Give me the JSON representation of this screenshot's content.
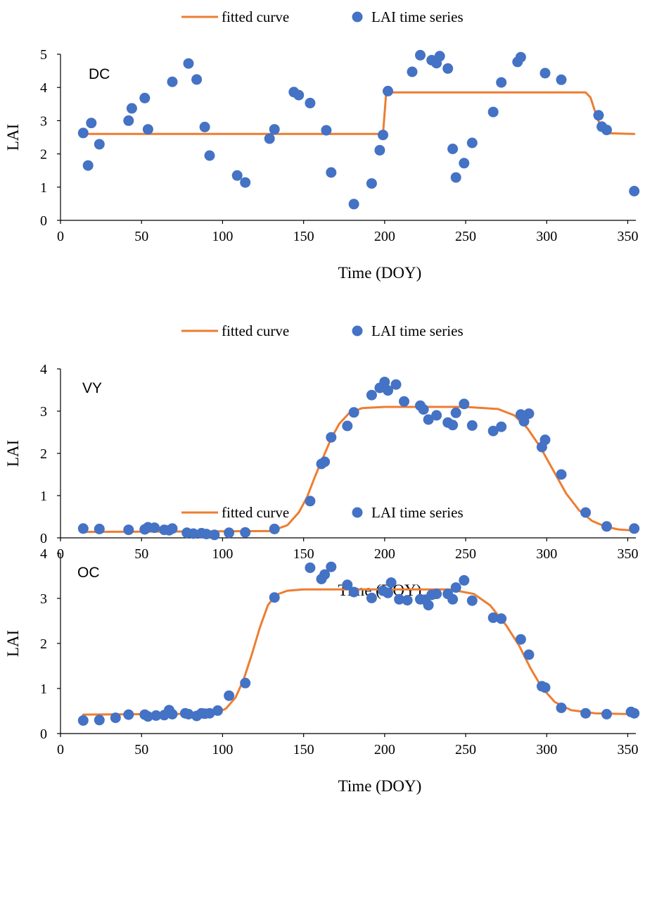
{
  "legend": {
    "line_label": "fitted curve",
    "dot_label": "LAI time series"
  },
  "colors": {
    "curve": "#ED7D31",
    "points": "#4472C4",
    "axis": "#000000"
  },
  "chart_data": [
    {
      "type": "scatter",
      "panel_label": "DC",
      "xlabel": "Time (DOY)",
      "ylabel": "LAI",
      "xlim": [
        0,
        355
      ],
      "ylim": [
        0,
        5
      ],
      "xticks": [
        0,
        50,
        100,
        150,
        200,
        250,
        300,
        350
      ],
      "yticks": [
        0,
        1,
        2,
        3,
        4,
        5
      ],
      "series": [
        {
          "name": "LAI time series",
          "kind": "points",
          "points": [
            [
              14,
              2.63
            ],
            [
              17,
              1.65
            ],
            [
              19,
              2.93
            ],
            [
              24,
              2.29
            ],
            [
              42,
              3.0
            ],
            [
              44,
              3.37
            ],
            [
              52,
              3.68
            ],
            [
              54,
              2.74
            ],
            [
              69,
              4.17
            ],
            [
              79,
              4.72
            ],
            [
              84,
              4.24
            ],
            [
              89,
              2.81
            ],
            [
              92,
              1.95
            ],
            [
              109,
              1.35
            ],
            [
              114,
              1.14
            ],
            [
              129,
              2.46
            ],
            [
              132,
              2.74
            ],
            [
              144,
              3.86
            ],
            [
              147,
              3.77
            ],
            [
              154,
              3.53
            ],
            [
              164,
              2.71
            ],
            [
              167,
              1.44
            ],
            [
              181,
              0.49
            ],
            [
              192,
              1.11
            ],
            [
              197,
              2.11
            ],
            [
              199,
              2.57
            ],
            [
              202,
              3.89
            ],
            [
              217,
              4.47
            ],
            [
              222,
              4.97
            ],
            [
              229,
              4.82
            ],
            [
              232,
              4.73
            ],
            [
              234,
              4.94
            ],
            [
              239,
              4.57
            ],
            [
              242,
              2.15
            ],
            [
              244,
              1.29
            ],
            [
              249,
              1.72
            ],
            [
              254,
              2.33
            ],
            [
              267,
              3.26
            ],
            [
              272,
              4.15
            ],
            [
              282,
              4.77
            ],
            [
              284,
              4.91
            ],
            [
              299,
              4.43
            ],
            [
              309,
              4.23
            ],
            [
              332,
              3.16
            ],
            [
              334,
              2.82
            ],
            [
              337,
              2.72
            ],
            [
              354,
              0.88
            ]
          ]
        },
        {
          "name": "fitted curve",
          "kind": "line",
          "points": [
            [
              14,
              2.6
            ],
            [
              199,
              2.6
            ],
            [
              201,
              3.85
            ],
            [
              324,
              3.85
            ],
            [
              327,
              3.7
            ],
            [
              331,
              3.1
            ],
            [
              334,
              2.75
            ],
            [
              338,
              2.62
            ],
            [
              354,
              2.6
            ]
          ]
        }
      ]
    },
    {
      "type": "scatter",
      "panel_label": "VY",
      "xlabel": "Time (DOY)",
      "ylabel": "LAI",
      "xlim": [
        0,
        355
      ],
      "ylim": [
        0,
        4
      ],
      "xticks": [
        0,
        50,
        100,
        150,
        200,
        250,
        300,
        350
      ],
      "yticks": [
        0,
        1,
        2,
        3,
        4
      ],
      "series": [
        {
          "name": "LAI time series",
          "kind": "points",
          "points": [
            [
              14,
              0.22
            ],
            [
              24,
              0.21
            ],
            [
              42,
              0.19
            ],
            [
              52,
              0.2
            ],
            [
              54,
              0.25
            ],
            [
              58,
              0.24
            ],
            [
              64,
              0.19
            ],
            [
              67,
              0.18
            ],
            [
              69,
              0.22
            ],
            [
              78,
              0.12
            ],
            [
              82,
              0.1
            ],
            [
              87,
              0.11
            ],
            [
              90,
              0.09
            ],
            [
              95,
              0.07
            ],
            [
              104,
              0.12
            ],
            [
              114,
              0.13
            ],
            [
              132,
              0.21
            ],
            [
              154,
              0.87
            ],
            [
              161,
              1.75
            ],
            [
              163,
              1.8
            ],
            [
              167,
              2.38
            ],
            [
              177,
              2.65
            ],
            [
              181,
              2.97
            ],
            [
              192,
              3.38
            ],
            [
              197,
              3.55
            ],
            [
              200,
              3.69
            ],
            [
              202,
              3.49
            ],
            [
              207,
              3.63
            ],
            [
              212,
              3.23
            ],
            [
              222,
              3.13
            ],
            [
              224,
              3.04
            ],
            [
              227,
              2.8
            ],
            [
              232,
              2.9
            ],
            [
              239,
              2.73
            ],
            [
              242,
              2.67
            ],
            [
              244,
              2.96
            ],
            [
              249,
              3.17
            ],
            [
              254,
              2.66
            ],
            [
              267,
              2.53
            ],
            [
              272,
              2.63
            ],
            [
              284,
              2.92
            ],
            [
              286,
              2.76
            ],
            [
              289,
              2.94
            ],
            [
              297,
              2.15
            ],
            [
              299,
              2.32
            ],
            [
              309,
              1.5
            ],
            [
              324,
              0.6
            ],
            [
              337,
              0.27
            ],
            [
              354,
              0.22
            ]
          ]
        },
        {
          "name": "fitted curve",
          "kind": "line",
          "points": [
            [
              14,
              0.14
            ],
            [
              130,
              0.16
            ],
            [
              140,
              0.3
            ],
            [
              147,
              0.6
            ],
            [
              152,
              0.95
            ],
            [
              157,
              1.45
            ],
            [
              162,
              1.9
            ],
            [
              167,
              2.35
            ],
            [
              172,
              2.7
            ],
            [
              178,
              2.95
            ],
            [
              186,
              3.07
            ],
            [
              200,
              3.1
            ],
            [
              250,
              3.1
            ],
            [
              270,
              3.05
            ],
            [
              280,
              2.9
            ],
            [
              288,
              2.6
            ],
            [
              296,
              2.15
            ],
            [
              304,
              1.6
            ],
            [
              312,
              1.05
            ],
            [
              320,
              0.65
            ],
            [
              328,
              0.4
            ],
            [
              336,
              0.27
            ],
            [
              344,
              0.2
            ],
            [
              354,
              0.17
            ]
          ]
        }
      ]
    },
    {
      "type": "scatter",
      "panel_label": "OC",
      "xlabel": "Time (DOY)",
      "ylabel": "LAI",
      "xlim": [
        0,
        355
      ],
      "ylim": [
        0,
        4
      ],
      "xticks": [
        0,
        50,
        100,
        150,
        200,
        250,
        300,
        350
      ],
      "yticks": [
        0,
        1,
        2,
        3,
        4
      ],
      "series": [
        {
          "name": "LAI time series",
          "kind": "points",
          "points": [
            [
              14,
              0.29
            ],
            [
              24,
              0.3
            ],
            [
              34,
              0.35
            ],
            [
              42,
              0.42
            ],
            [
              52,
              0.42
            ],
            [
              54,
              0.38
            ],
            [
              59,
              0.4
            ],
            [
              64,
              0.41
            ],
            [
              67,
              0.52
            ],
            [
              69,
              0.43
            ],
            [
              77,
              0.45
            ],
            [
              79,
              0.43
            ],
            [
              84,
              0.39
            ],
            [
              87,
              0.45
            ],
            [
              89,
              0.44
            ],
            [
              92,
              0.45
            ],
            [
              97,
              0.51
            ],
            [
              104,
              0.84
            ],
            [
              114,
              1.12
            ],
            [
              132,
              3.02
            ],
            [
              154,
              3.68
            ],
            [
              161,
              3.43
            ],
            [
              163,
              3.53
            ],
            [
              167,
              3.7
            ],
            [
              177,
              3.3
            ],
            [
              181,
              3.14
            ],
            [
              192,
              3.01
            ],
            [
              199,
              3.17
            ],
            [
              202,
              3.12
            ],
            [
              204,
              3.35
            ],
            [
              209,
              2.98
            ],
            [
              214,
              2.96
            ],
            [
              222,
              2.98
            ],
            [
              225,
              2.97
            ],
            [
              227,
              2.85
            ],
            [
              229,
              3.08
            ],
            [
              232,
              3.1
            ],
            [
              239,
              3.1
            ],
            [
              242,
              2.98
            ],
            [
              244,
              3.24
            ],
            [
              249,
              3.4
            ],
            [
              254,
              2.95
            ],
            [
              267,
              2.57
            ],
            [
              272,
              2.55
            ],
            [
              284,
              2.09
            ],
            [
              289,
              1.75
            ],
            [
              297,
              1.05
            ],
            [
              299,
              1.02
            ],
            [
              309,
              0.57
            ],
            [
              324,
              0.45
            ],
            [
              337,
              0.43
            ],
            [
              352,
              0.48
            ],
            [
              354,
              0.45
            ]
          ]
        },
        {
          "name": "fitted curve",
          "kind": "line",
          "points": [
            [
              14,
              0.42
            ],
            [
              95,
              0.44
            ],
            [
              102,
              0.55
            ],
            [
              108,
              0.8
            ],
            [
              113,
              1.2
            ],
            [
              118,
              1.75
            ],
            [
              123,
              2.35
            ],
            [
              128,
              2.85
            ],
            [
              133,
              3.08
            ],
            [
              140,
              3.17
            ],
            [
              150,
              3.2
            ],
            [
              240,
              3.2
            ],
            [
              255,
              3.1
            ],
            [
              265,
              2.85
            ],
            [
              275,
              2.4
            ],
            [
              283,
              1.95
            ],
            [
              290,
              1.45
            ],
            [
              297,
              1.02
            ],
            [
              305,
              0.7
            ],
            [
              315,
              0.52
            ],
            [
              330,
              0.45
            ],
            [
              354,
              0.43
            ]
          ]
        }
      ]
    }
  ]
}
